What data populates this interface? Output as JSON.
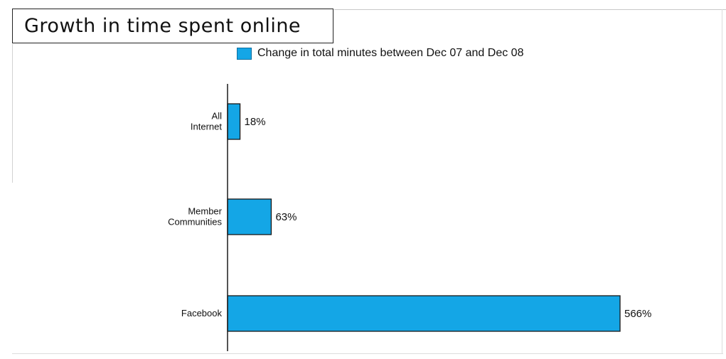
{
  "title": "Growth in time spent online",
  "colors": {
    "bar": "#14a6e6",
    "bar_border": "#1a1a1a",
    "axis": "#1a1a1a"
  },
  "chart_data": {
    "type": "bar",
    "orientation": "horizontal",
    "title": "Growth in time spent online",
    "categories": [
      "All Internet",
      "Member Communities",
      "Facebook"
    ],
    "category_lines": [
      [
        "All",
        "Internet"
      ],
      [
        "Member",
        "Communities"
      ],
      [
        "Facebook"
      ]
    ],
    "series": [
      {
        "name": "Change in total minutes between Dec 07 and Dec 08",
        "values": [
          18,
          63,
          566
        ]
      }
    ],
    "value_labels": [
      "18%",
      "63%",
      "566%"
    ],
    "xlim": [
      0,
      580
    ],
    "grid": false,
    "legend_position": "top"
  }
}
